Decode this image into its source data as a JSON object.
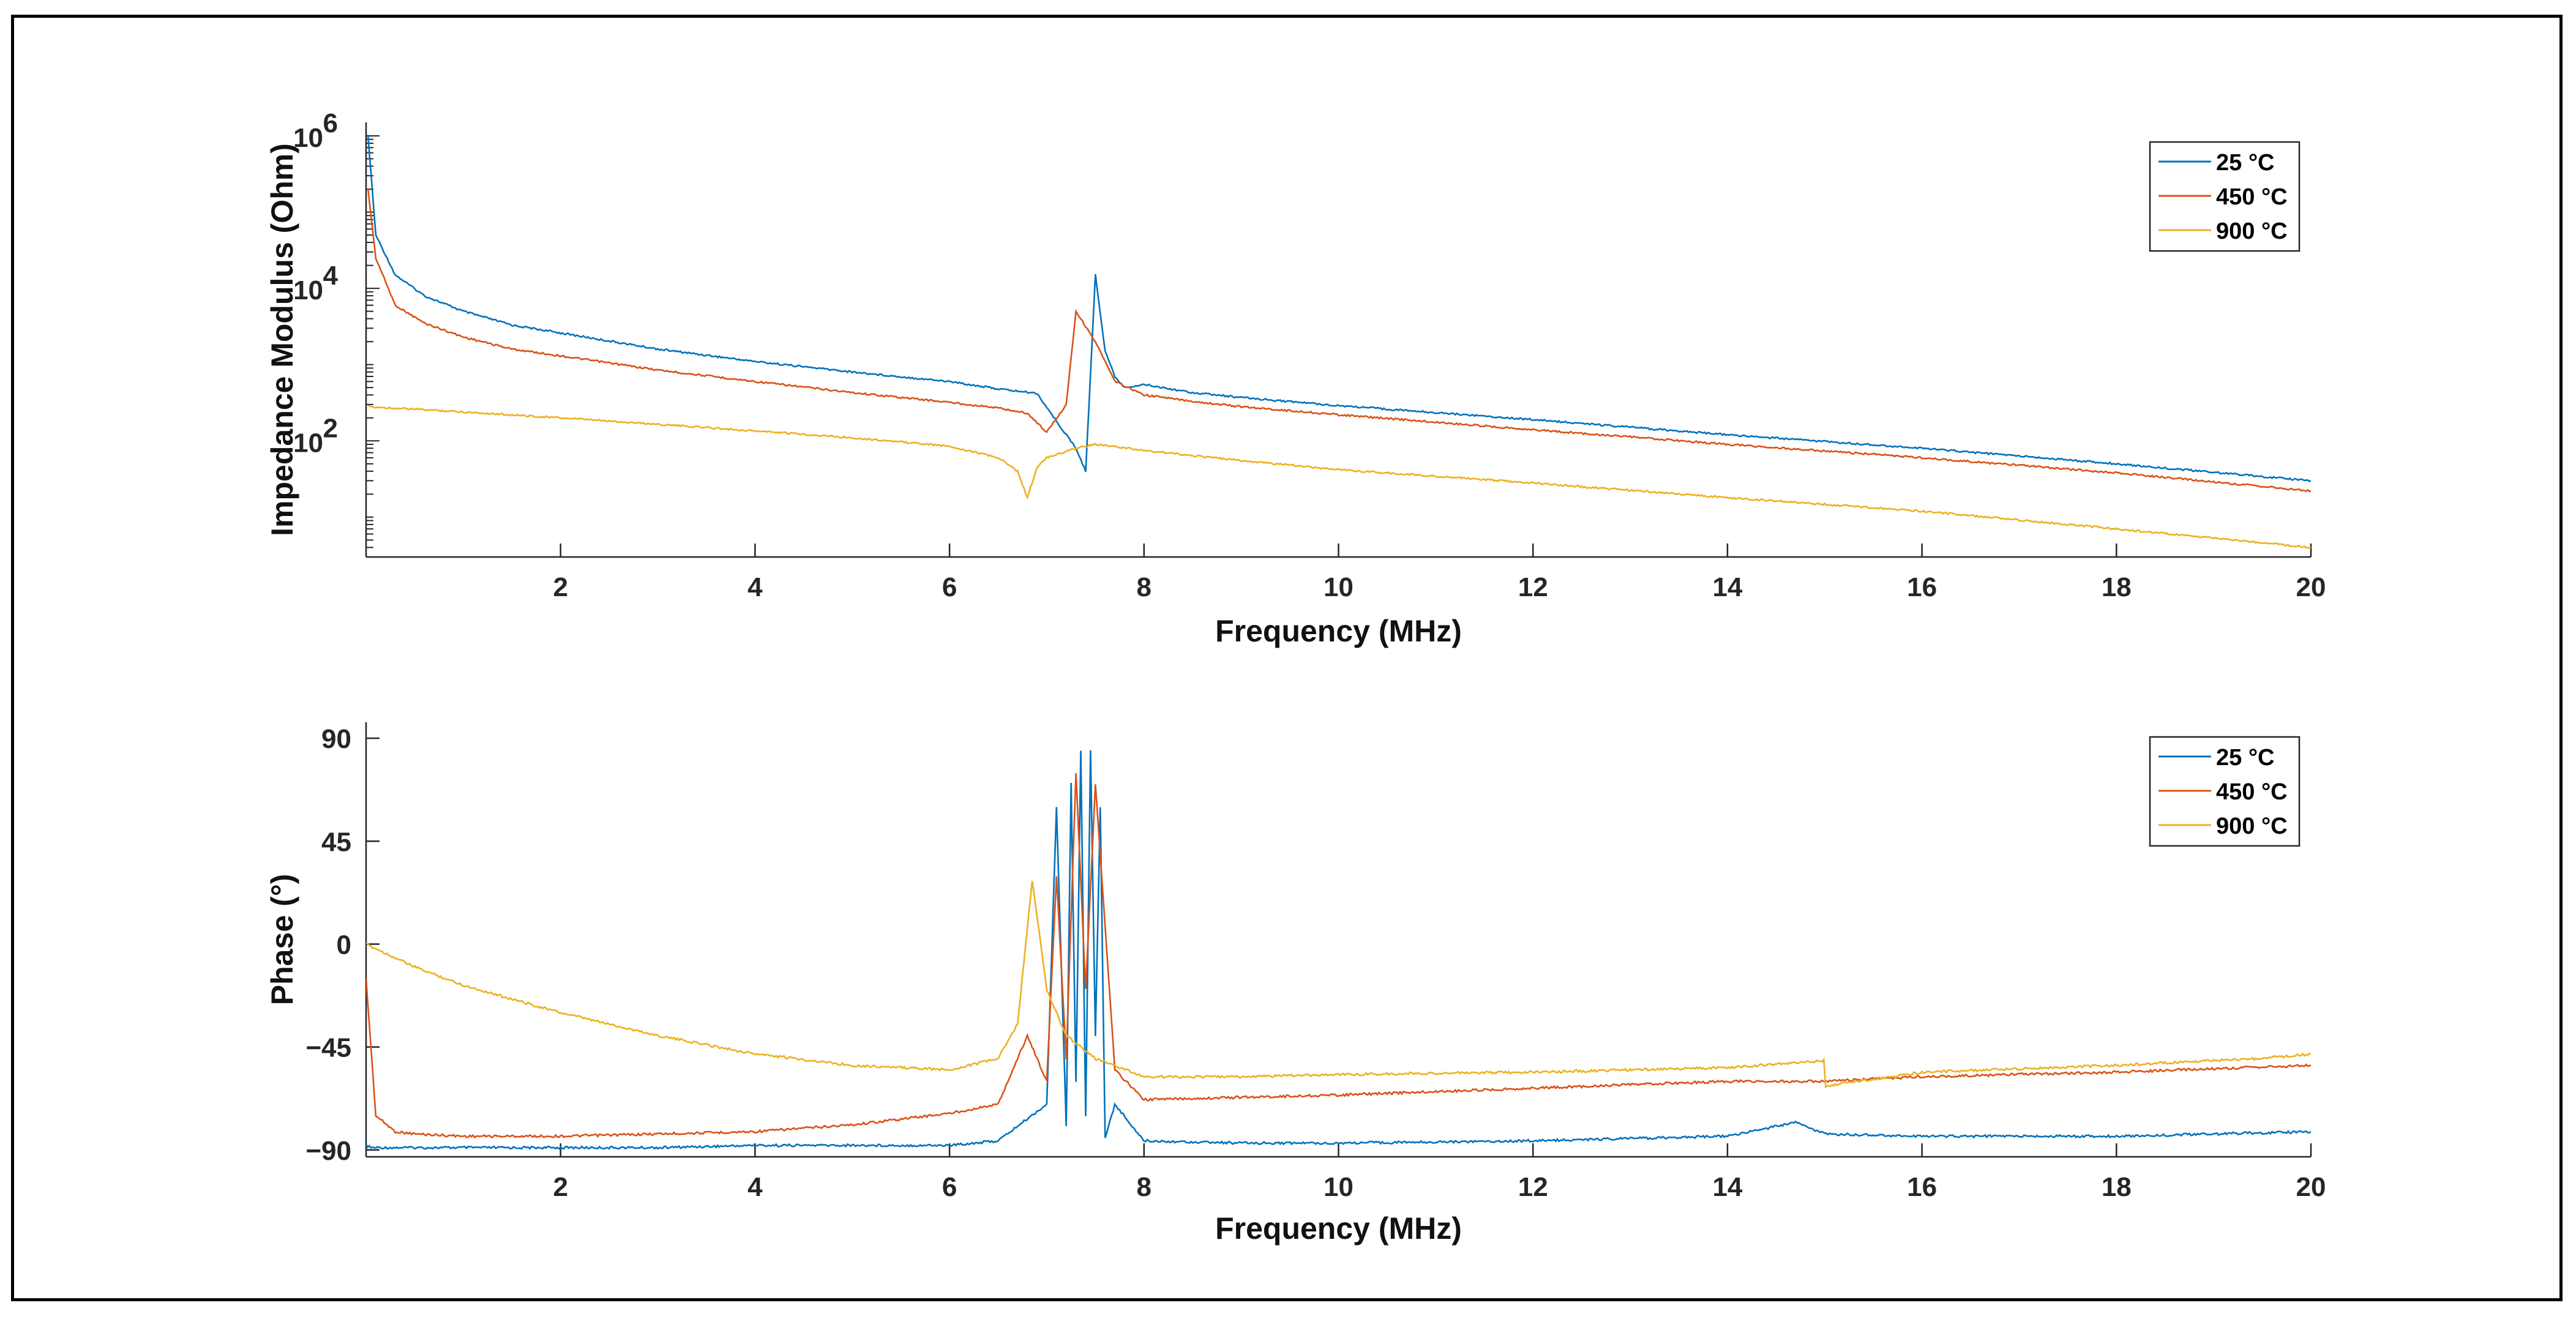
{
  "chart_data": [
    {
      "type": "line",
      "title": "",
      "xlabel": "Frequency (MHz)",
      "ylabel": "Impedance Modulus (Ohm)",
      "yscale": "log",
      "xlim": [
        0,
        20
      ],
      "ylim": [
        3,
        1500000
      ],
      "x_ticks": [
        2,
        4,
        6,
        8,
        10,
        12,
        14,
        16,
        18,
        20
      ],
      "x_tick_labels": [
        "2",
        "4",
        "6",
        "8",
        "10",
        "12",
        "14",
        "16",
        "18",
        "20"
      ],
      "y_ticks": [
        100,
        10000,
        1000000
      ],
      "y_tick_labels": [
        {
          "base": "10",
          "exp": "2"
        },
        {
          "base": "10",
          "exp": "4"
        },
        {
          "base": "10",
          "exp": "6"
        }
      ],
      "legend": {
        "location": "top-right",
        "entries": [
          "25 °C",
          "450 °C",
          "900 °C"
        ]
      },
      "series": [
        {
          "name": "25 °C",
          "color": "#0072BD",
          "x": [
            0.02,
            0.1,
            0.3,
            0.6,
            1,
            1.5,
            2,
            3,
            4,
            5,
            6,
            6.5,
            6.9,
            7.1,
            7.3,
            7.4,
            7.5,
            7.6,
            7.7,
            7.8,
            8,
            8.5,
            9,
            10,
            12,
            14,
            16,
            18,
            20
          ],
          "y": [
            1000000,
            50000,
            15000,
            8000,
            5000,
            3300,
            2600,
            1600,
            1100,
            800,
            600,
            480,
            420,
            180,
            80,
            40,
            15000,
            1500,
            700,
            500,
            550,
            430,
            370,
            290,
            190,
            120,
            80,
            50,
            30
          ]
        },
        {
          "name": "450 °C",
          "color": "#D95319",
          "x": [
            0.02,
            0.1,
            0.3,
            0.6,
            1,
            1.5,
            2,
            3,
            4,
            5,
            6,
            6.5,
            6.8,
            7.0,
            7.2,
            7.3,
            7.5,
            7.7,
            8,
            8.5,
            9,
            10,
            12,
            14,
            16,
            18,
            20
          ],
          "y": [
            200000,
            25000,
            6000,
            3500,
            2300,
            1600,
            1300,
            850,
            600,
            430,
            320,
            270,
            230,
            130,
            300,
            5000,
            2000,
            600,
            400,
            330,
            280,
            220,
            140,
            90,
            60,
            38,
            22
          ]
        },
        {
          "name": "900 °C",
          "color": "#EDB120",
          "x": [
            0.02,
            0.5,
            1,
            2,
            3,
            4,
            5,
            6,
            6.5,
            6.7,
            6.8,
            6.9,
            7.0,
            7.3,
            7.5,
            8,
            9,
            10,
            12,
            14,
            16,
            18,
            20
          ],
          "y": [
            280,
            260,
            240,
            200,
            165,
            135,
            110,
            85,
            60,
            40,
            18,
            45,
            60,
            80,
            90,
            75,
            55,
            42,
            28,
            18,
            12,
            7,
            4
          ]
        }
      ]
    },
    {
      "type": "line",
      "title": "",
      "xlabel": "Frequency (MHz)",
      "ylabel": "Phase (°)",
      "xlim": [
        0,
        20
      ],
      "ylim": [
        -93,
        97
      ],
      "x_ticks": [
        2,
        4,
        6,
        8,
        10,
        12,
        14,
        16,
        18,
        20
      ],
      "x_tick_labels": [
        "2",
        "4",
        "6",
        "8",
        "10",
        "12",
        "14",
        "16",
        "18",
        "20"
      ],
      "y_ticks": [
        -90,
        -45,
        0,
        45,
        90
      ],
      "y_tick_labels": [
        "−90",
        "−45",
        "0",
        "45",
        "90"
      ],
      "legend": {
        "location": "top-right",
        "entries": [
          "25 °C",
          "450 °C",
          "900 °C"
        ]
      },
      "series": [
        {
          "name": "25 °C",
          "color": "#0072BD",
          "x": [
            0,
            0.05,
            0.1,
            1,
            2,
            3,
            4,
            5,
            6,
            6.5,
            7.0,
            7.1,
            7.2,
            7.25,
            7.3,
            7.35,
            7.4,
            7.45,
            7.5,
            7.55,
            7.6,
            7.7,
            8,
            9,
            10,
            12,
            14,
            14.7,
            15,
            16,
            18,
            20
          ],
          "y": [
            -88,
            -89,
            -89,
            -89,
            -89,
            -89,
            -88,
            -88,
            -88,
            -86,
            -70,
            60,
            -80,
            70,
            -60,
            85,
            -75,
            85,
            -40,
            60,
            -85,
            -70,
            -86,
            -87,
            -87,
            -86,
            -84,
            -78,
            -83,
            -84,
            -84,
            -82
          ]
        },
        {
          "name": "450 °C",
          "color": "#D95319",
          "x": [
            0,
            0.1,
            0.3,
            0.5,
            1,
            2,
            3,
            4,
            5,
            6,
            6.5,
            6.8,
            7.0,
            7.1,
            7.2,
            7.3,
            7.4,
            7.5,
            7.7,
            8,
            9,
            10,
            12,
            14,
            15,
            16,
            18,
            20
          ],
          "y": [
            -15,
            -75,
            -82,
            -83,
            -84,
            -84,
            -83,
            -82,
            -79,
            -74,
            -70,
            -40,
            -60,
            30,
            -50,
            75,
            -20,
            70,
            -55,
            -68,
            -67,
            -66,
            -63,
            -60,
            -60,
            -58,
            -56,
            -53
          ]
        },
        {
          "name": "900 °C",
          "color": "#EDB120",
          "x": [
            0,
            0.5,
            1,
            2,
            3,
            4,
            5,
            6,
            6.5,
            6.7,
            6.85,
            7.0,
            7.2,
            7.5,
            8,
            9,
            10,
            12,
            14,
            14.99,
            15.01,
            16,
            18,
            19.5,
            20
          ],
          "y": [
            0,
            -10,
            -18,
            -30,
            -40,
            -48,
            -53,
            -55,
            -50,
            -35,
            28,
            -20,
            -40,
            -50,
            -58,
            -58,
            -57,
            -56,
            -54,
            -51,
            -62,
            -56,
            -53,
            -50,
            -48
          ]
        }
      ]
    }
  ]
}
